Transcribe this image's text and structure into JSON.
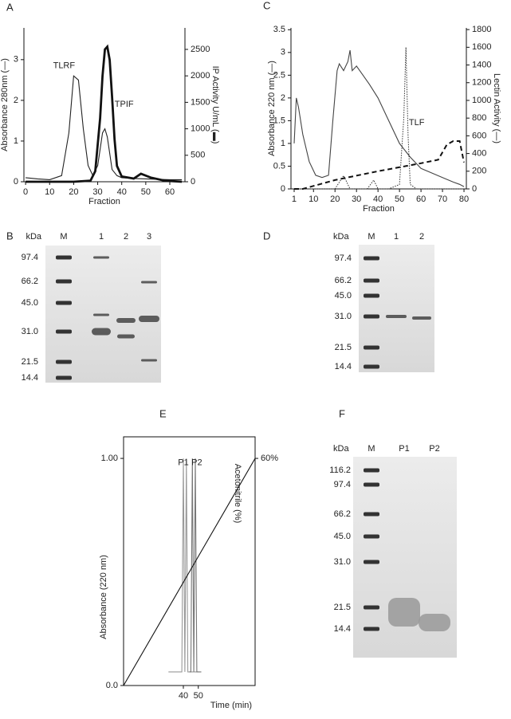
{
  "chart_data": [
    {
      "type": "line",
      "label": "A",
      "ylabel": "Absorbance 280nm (—)",
      "y2label": "IP Activity U/mL (▬)",
      "xlabel": "Fraction",
      "xlim": [
        -0.7,
        66.3
      ],
      "xticks": [
        0,
        10,
        20,
        30,
        40,
        50,
        60
      ],
      "ylim": [
        0,
        3.78
      ],
      "yticks": [
        0,
        1,
        2,
        3
      ],
      "y2lim": [
        0,
        2906
      ],
      "y2ticks": [
        0,
        500,
        1000,
        1500,
        2000,
        2500
      ],
      "series": [
        {
          "style": "solid",
          "color": "#222",
          "x": [
            0,
            5,
            10,
            15,
            18,
            20,
            22,
            24,
            26,
            28,
            30,
            32,
            33,
            34,
            36,
            38,
            40,
            45,
            50,
            55,
            60,
            65
          ],
          "values": [
            0.1,
            0.07,
            0.05,
            0.15,
            1.2,
            2.6,
            2.5,
            1.3,
            0.4,
            0.15,
            0.4,
            1.2,
            1.3,
            1.1,
            0.3,
            0.15,
            0.1,
            0.08,
            0.07,
            0.06,
            0.05,
            0.05
          ]
        },
        {
          "style": "thick",
          "color": "#111",
          "axis": "y2",
          "x": [
            0,
            20,
            27,
            29,
            31,
            32,
            33,
            34,
            35,
            36,
            37,
            38,
            40,
            45,
            48,
            52,
            58,
            65
          ],
          "values": [
            0,
            0,
            20,
            200,
            1200,
            2000,
            2500,
            2550,
            2300,
            1600,
            800,
            300,
            100,
            60,
            150,
            80,
            20,
            0
          ]
        }
      ],
      "annotations": [
        {
          "text": "TLRF",
          "x": 16,
          "y": 2.85
        },
        {
          "text": "TPIF",
          "x": 41,
          "y": 1.9
        }
      ]
    },
    {
      "type": "line",
      "label": "C",
      "ylabel": "Absorbance 220 nm (—)",
      "y2label": "Lectin Activity (—)",
      "xlabel": "Fraction",
      "xlim": [
        -0.48,
        81.1
      ],
      "xticks": [
        1,
        10,
        20,
        30,
        40,
        50,
        60,
        70,
        80
      ],
      "ylim": [
        0,
        3.54
      ],
      "yticks": [
        0,
        0.5,
        1,
        1.5,
        2,
        2.5,
        3,
        3.5
      ],
      "y2lim": [
        0,
        1819
      ],
      "y2ticks": [
        0,
        200,
        400,
        600,
        800,
        1000,
        1200,
        1400,
        1600,
        1800
      ],
      "series": [
        {
          "style": "solid",
          "color": "#444",
          "x": [
            1,
            2,
            3,
            5,
            8,
            11,
            14,
            17,
            19,
            21,
            22,
            24,
            26,
            27,
            28,
            30,
            33,
            36,
            40,
            45,
            50,
            55,
            60,
            65,
            70,
            75,
            78,
            80
          ],
          "values": [
            1.0,
            2.0,
            1.8,
            1.2,
            0.6,
            0.3,
            0.25,
            0.3,
            1.5,
            2.6,
            2.75,
            2.6,
            2.8,
            3.05,
            2.6,
            2.7,
            2.5,
            2.3,
            2.0,
            1.5,
            1.0,
            0.7,
            0.45,
            0.35,
            0.25,
            0.15,
            0.1,
            0.05
          ]
        },
        {
          "style": "dotted",
          "color": "#333",
          "axis": "y2",
          "x": [
            1,
            20,
            24,
            27,
            30,
            35,
            38,
            40,
            42,
            45,
            50,
            52,
            53,
            54,
            55,
            58,
            65,
            80
          ],
          "values": [
            0,
            0,
            150,
            0,
            0,
            0,
            100,
            0,
            0,
            0,
            50,
            800,
            1600,
            600,
            50,
            0,
            0,
            0
          ]
        },
        {
          "style": "dashed",
          "color": "#111",
          "axis": "y2",
          "x": [
            1,
            5,
            20,
            40,
            60,
            68,
            72,
            75,
            78,
            80
          ],
          "values": [
            0,
            0,
            100,
            200,
            290,
            330,
            500,
            540,
            540,
            300
          ]
        }
      ],
      "annotations": [
        {
          "text": "TLF",
          "x": 58,
          "y": 1.45
        }
      ]
    },
    {
      "type": "line",
      "label": "E",
      "ylabel": "Absorbance (220 nm)",
      "y2label": "Acetonitrile (%)",
      "xlabel": "Time (min)",
      "box": true,
      "xlim": [
        0,
        88
      ],
      "xticks": [
        40,
        50
      ],
      "ylim": [
        0,
        1.095
      ],
      "yticks": [
        {
          "value": 0,
          "label": "0.0"
        },
        {
          "value": 1,
          "label": "1.00"
        }
      ],
      "y2lim": [
        0,
        65.7
      ],
      "y2ticks": [
        {
          "value": 60,
          "label": "60%"
        }
      ],
      "series": [
        {
          "style": "solid",
          "color": "#999",
          "x": [
            30,
            38,
            39,
            40,
            41,
            42,
            43,
            44,
            50
          ],
          "values": [
            0.06,
            0.06,
            0.06,
            1.0,
            0.06,
            1.0,
            0.06,
            0.06,
            0.06
          ]
        },
        {
          "style": "solid",
          "color": "#777",
          "x": [
            44,
            45,
            46,
            47,
            48,
            49,
            52
          ],
          "values": [
            0.06,
            0.06,
            1.0,
            0.06,
            1.0,
            0.06,
            0.06
          ]
        },
        {
          "style": "solid",
          "color": "#111",
          "axis": "y2",
          "x": [
            0,
            88
          ],
          "values": [
            0,
            60
          ]
        }
      ],
      "annotations": [
        {
          "text": "P1",
          "x": 40,
          "y": 0.98
        },
        {
          "text": "P2",
          "x": 49,
          "y": 0.98
        }
      ]
    }
  ],
  "gels": [
    {
      "label": "B",
      "unit": "kDa",
      "lanes": [
        "M",
        "1",
        "2",
        "3"
      ],
      "markers": [
        "97.4",
        "66.2",
        "45.0",
        "31.0",
        "21.5",
        "14.4"
      ]
    },
    {
      "label": "D",
      "unit": "kDa",
      "lanes": [
        "M",
        "1",
        "2"
      ],
      "markers": [
        "97.4",
        "66.2",
        "45.0",
        "31.0",
        "21.5",
        "14.4"
      ]
    },
    {
      "label": "F",
      "unit": "kDa",
      "lanes": [
        "M",
        "P1",
        "P2"
      ],
      "markers": [
        "116.2",
        "97.4",
        "66.2",
        "45.0",
        "31.0",
        "21.5",
        "14.4"
      ]
    }
  ]
}
